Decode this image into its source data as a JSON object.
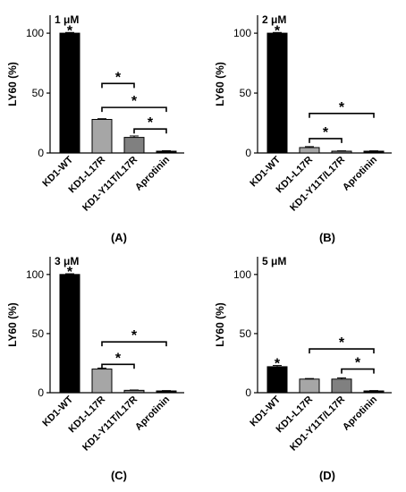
{
  "y_axis_label": "LY60 (%)",
  "y_ticks": [
    0,
    50,
    100
  ],
  "ylim": [
    0,
    115
  ],
  "categories": [
    "KD1-WT",
    "KD1-L17R",
    "KD1-Y11T/L17R",
    "Aprotinin"
  ],
  "colors": {
    "bars": [
      "#000000",
      "#a6a6a6",
      "#808080",
      "#000000"
    ],
    "axis": "#000000"
  },
  "chart_data": [
    {
      "type": "bar",
      "panel": "(A)",
      "concentration": "1 μM",
      "categories": [
        "KD1-WT",
        "KD1-L17R",
        "KD1-Y11T/L17R",
        "Aprotinin"
      ],
      "values": [
        100,
        28,
        13,
        1.5
      ],
      "errors": [
        0.6,
        0.6,
        1.2,
        0.4
      ],
      "bar_stars": [
        true,
        false,
        false,
        false
      ],
      "brackets": [
        {
          "from": 1,
          "to": 2,
          "y": 58,
          "label": "*"
        },
        {
          "from": 1,
          "to": 3,
          "y": 38,
          "label": "*"
        },
        {
          "from": 2,
          "to": 3,
          "y": 20,
          "label": "*"
        }
      ],
      "ylabel": "LY60 (%)",
      "ylim": [
        0,
        115
      ]
    },
    {
      "type": "bar",
      "panel": "(B)",
      "concentration": "2 μM",
      "categories": [
        "KD1-WT",
        "KD1-L17R",
        "KD1-Y11T/L17R",
        "Aprotinin"
      ],
      "values": [
        100,
        4.5,
        1.5,
        1.5
      ],
      "errors": [
        0.6,
        0.8,
        0.3,
        0.3
      ],
      "bar_stars": [
        true,
        false,
        false,
        false
      ],
      "brackets": [
        {
          "from": 1,
          "to": 3,
          "y": 33,
          "label": "*"
        },
        {
          "from": 1,
          "to": 2,
          "y": 12,
          "label": "*"
        }
      ],
      "ylabel": "LY60 (%)",
      "ylim": [
        0,
        115
      ]
    },
    {
      "type": "bar",
      "panel": "(C)",
      "concentration": "3 μM",
      "categories": [
        "KD1-WT",
        "KD1-L17R",
        "KD1-Y11T/L17R",
        "Aprotinin"
      ],
      "values": [
        100,
        20,
        2,
        1.5
      ],
      "errors": [
        0.6,
        0.8,
        0.3,
        0.3
      ],
      "bar_stars": [
        true,
        false,
        false,
        false
      ],
      "brackets": [
        {
          "from": 1,
          "to": 3,
          "y": 43,
          "label": "*"
        },
        {
          "from": 1,
          "to": 2,
          "y": 24,
          "label": "*"
        }
      ],
      "ylabel": "LY60 (%)",
      "ylim": [
        0,
        115
      ]
    },
    {
      "type": "bar",
      "panel": "(D)",
      "concentration": "5 μM",
      "categories": [
        "KD1-WT",
        "KD1-L17R",
        "KD1-Y11T/L17R",
        "Aprotinin"
      ],
      "values": [
        22,
        11.5,
        11.5,
        1.5
      ],
      "errors": [
        1.0,
        0.5,
        1.0,
        0.3
      ],
      "bar_stars": [
        true,
        false,
        false,
        false
      ],
      "brackets": [
        {
          "from": 1,
          "to": 3,
          "y": 37,
          "label": "*"
        },
        {
          "from": 2,
          "to": 3,
          "y": 20,
          "label": "*"
        }
      ],
      "ylabel": "LY60 (%)",
      "ylim": [
        0,
        115
      ]
    }
  ]
}
